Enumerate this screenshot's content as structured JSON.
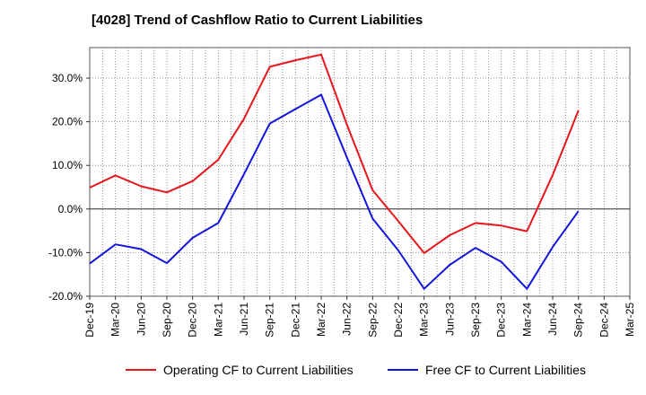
{
  "chart_data": {
    "type": "line",
    "title": "[4028]  Trend of Cashflow Ratio to Current Liabilities",
    "xlabel": "",
    "ylabel": "",
    "categories": [
      "Dec-19",
      "Mar-20",
      "Jun-20",
      "Sep-20",
      "Dec-20",
      "Mar-21",
      "Jun-21",
      "Sep-21",
      "Dec-21",
      "Mar-22",
      "Jun-22",
      "Sep-22",
      "Dec-22",
      "Mar-23",
      "Jun-23",
      "Sep-23",
      "Dec-23",
      "Mar-24",
      "Jun-24",
      "Sep-24",
      "Dec-24",
      "Mar-25"
    ],
    "ylim": [
      -20,
      37
    ],
    "yticks": [
      -20,
      -10,
      0,
      10,
      20,
      30
    ],
    "ytick_labels": [
      "-20.0%",
      "-10.0%",
      "0.0%",
      "10.0%",
      "20.0%",
      "30.0%"
    ],
    "grid": true,
    "legend_position": "bottom",
    "series": [
      {
        "name": "Operating CF to Current Liabilities",
        "color": "#e8161b",
        "values": [
          4.9,
          7.7,
          5.2,
          3.8,
          6.4,
          11.3,
          20.7,
          32.6,
          34.1,
          35.4,
          19.3,
          4.3,
          -2.8,
          -10.1,
          -6.0,
          -3.2,
          -3.8,
          -5.1,
          7.8,
          22.6,
          null,
          null
        ]
      },
      {
        "name": "Free CF to Current Liabilities",
        "color": "#1414e0",
        "values": [
          -12.5,
          -8.1,
          -9.2,
          -12.4,
          -6.6,
          -3.2,
          8.0,
          19.6,
          22.9,
          26.2,
          11.8,
          -2.2,
          -9.5,
          -18.3,
          -12.8,
          -8.9,
          -12.1,
          -18.3,
          -8.7,
          -0.5,
          null,
          null
        ]
      }
    ]
  }
}
